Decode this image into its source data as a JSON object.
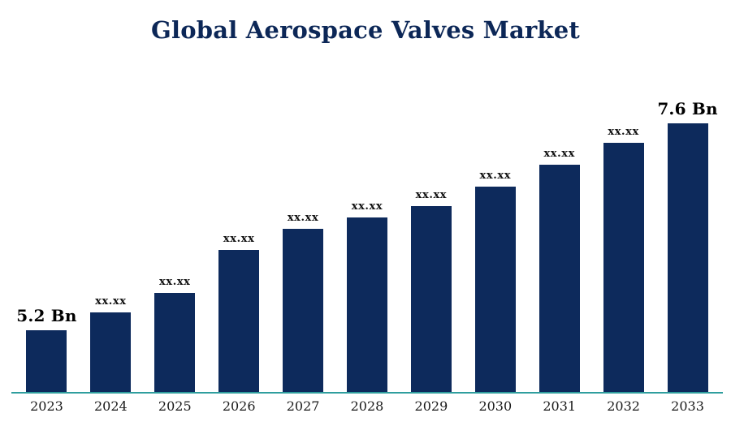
{
  "chart_data": {
    "type": "bar",
    "title": "Global Aerospace Valves Market",
    "categories": [
      "2023",
      "2024",
      "2025",
      "2026",
      "2027",
      "2028",
      "2029",
      "2030",
      "2031",
      "2032",
      "2033"
    ],
    "values": [
      5.2,
      5.41,
      5.64,
      6.13,
      6.38,
      6.51,
      6.64,
      6.87,
      7.12,
      7.37,
      7.6
    ],
    "bar_labels": [
      "5.2  Bn",
      "xx.xx",
      "xx.xx",
      "xx.xx",
      "xx.xx",
      "xx.xx",
      "xx.xx",
      "xx.xx",
      "xx.xx",
      "xx.xx",
      "7.6 Bn"
    ],
    "unit": "Bn",
    "xlabel": "",
    "ylabel": "",
    "ylim": [
      4.49,
      7.75
    ],
    "grid": false,
    "legend": "none",
    "bar_color": "#0d2a5c",
    "axis_line_color": "#2f9e9e",
    "title_color": "#0c2757"
  }
}
